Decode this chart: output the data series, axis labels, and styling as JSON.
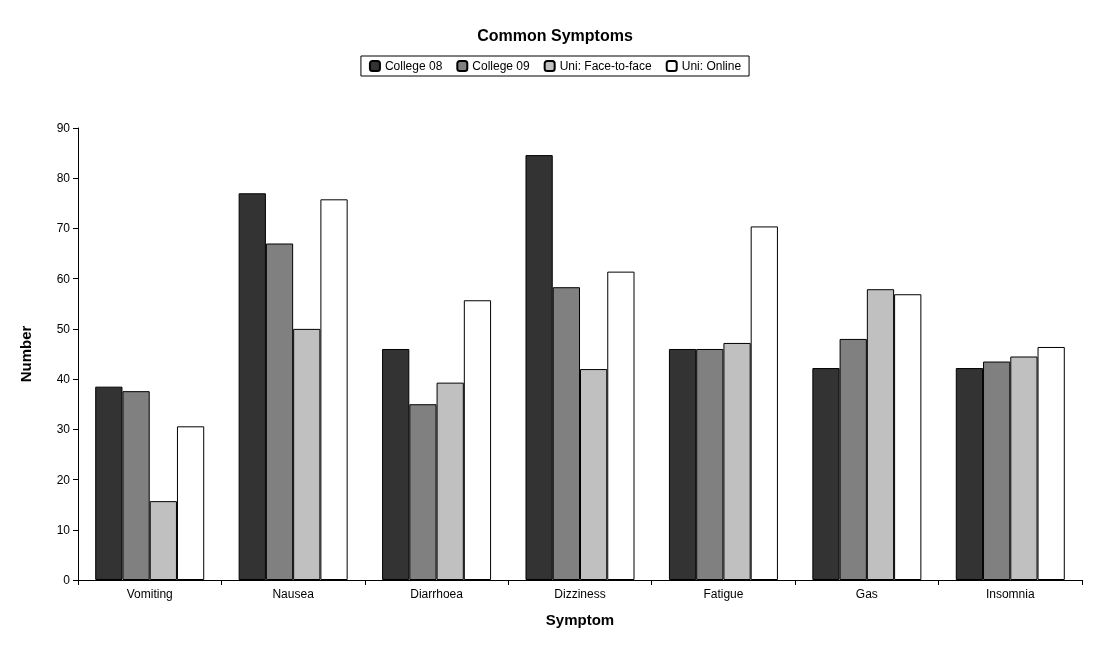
{
  "chart_data": {
    "type": "bar",
    "title": "Common Symptoms",
    "xlabel": "Symptom",
    "ylabel": "Number",
    "categories": [
      "Vomiting",
      "Nausea",
      "Diarrhoea",
      "Dizziness",
      "Fatigue",
      "Gas",
      "Insomnia"
    ],
    "series": [
      {
        "name": "College 08",
        "color": "#333333",
        "values": [
          38.5,
          77,
          46,
          84.6,
          46,
          42.2,
          42.2
        ]
      },
      {
        "name": "College 09",
        "color": "#808080",
        "values": [
          37.6,
          67,
          35,
          58.3,
          46,
          48,
          43.5
        ]
      },
      {
        "name": "Uni: Face-to-face",
        "color": "#c0c0c0",
        "values": [
          15.7,
          50,
          39.3,
          42,
          47.2,
          57.9,
          44.5
        ]
      },
      {
        "name": "Uni: Online",
        "color": "#ffffff",
        "values": [
          30.6,
          75.8,
          55.7,
          61.4,
          70.4,
          56.9,
          46.4
        ]
      }
    ],
    "ylim": [
      0,
      90
    ],
    "yticks": [
      0,
      10,
      20,
      30,
      40,
      50,
      60,
      70,
      80,
      90
    ],
    "grid": false,
    "legend": "top"
  }
}
